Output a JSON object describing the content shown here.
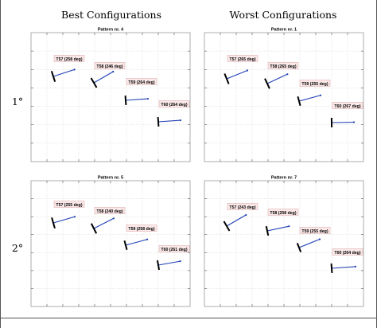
{
  "columns": [
    "Best Configurations",
    "Worst Configurations"
  ],
  "rows": [
    "1°",
    "2°"
  ],
  "colors": {
    "wake": "#1f3fb4",
    "rotor": "#000000",
    "label_bg": "#fbe9e9",
    "label_border": "#d9a0a0"
  },
  "panels": [
    {
      "title": "Pattern nr. 4",
      "turbines": [
        {
          "label": "T57 (258 deg)"
        },
        {
          "label": "T58 (246 deg)"
        },
        {
          "label": "T59 (264 deg)"
        },
        {
          "label": "T60 (264 deg)"
        }
      ]
    },
    {
      "title": "Pattern nr. 1",
      "turbines": [
        {
          "label": "T57 (265 deg)"
        },
        {
          "label": "T58 (265 deg)"
        },
        {
          "label": "T59 (255 deg)"
        },
        {
          "label": "T60 (267 deg)"
        }
      ]
    },
    {
      "title": "Pattern nr. 5",
      "turbines": [
        {
          "label": "T57 (255 deg)"
        },
        {
          "label": "T58 (240 deg)"
        },
        {
          "label": "T59 (258 deg)"
        },
        {
          "label": "T60 (261 deg)"
        }
      ]
    },
    {
      "title": "Pattern nr. 7",
      "turbines": [
        {
          "label": "T57 (243 deg)"
        },
        {
          "label": "T58 (258 deg)"
        },
        {
          "label": "T59 (255 deg)"
        },
        {
          "label": "T60 (264 deg)"
        }
      ]
    }
  ]
}
